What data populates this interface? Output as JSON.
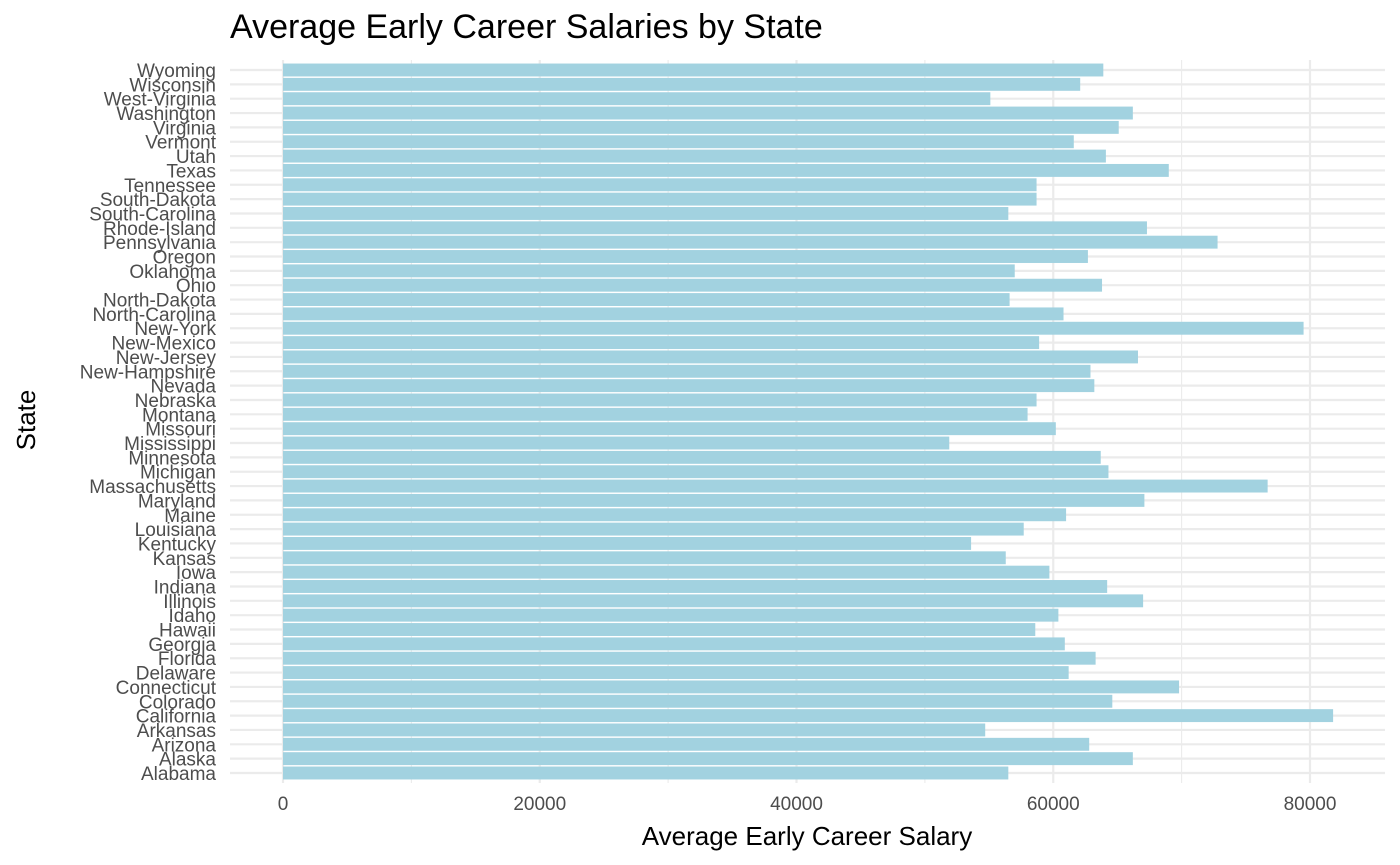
{
  "chart_data": {
    "type": "bar",
    "orientation": "horizontal",
    "title": "Average Early Career Salaries by State",
    "xlabel": "Average Early Career Salary",
    "ylabel": "State",
    "xlim": [
      0,
      85000
    ],
    "xticks": [
      0,
      20000,
      40000,
      60000,
      80000
    ],
    "grid": true,
    "bar_color": "#a2d2e0",
    "categories": [
      "Alabama",
      "Alaska",
      "Arizona",
      "Arkansas",
      "California",
      "Colorado",
      "Connecticut",
      "Delaware",
      "Florida",
      "Georgia",
      "Hawaii",
      "Idaho",
      "Illinois",
      "Indiana",
      "Iowa",
      "Kansas",
      "Kentucky",
      "Louisiana",
      "Maine",
      "Maryland",
      "Massachusetts",
      "Michigan",
      "Minnesota",
      "Mississippi",
      "Missouri",
      "Montana",
      "Nebraska",
      "Nevada",
      "New-Hampshire",
      "New-Jersey",
      "New-Mexico",
      "New-York",
      "North-Carolina",
      "North-Dakota",
      "Ohio",
      "Oklahoma",
      "Oregon",
      "Pennsylvania",
      "Rhode-Island",
      "South-Carolina",
      "South-Dakota",
      "Tennessee",
      "Texas",
      "Utah",
      "Vermont",
      "Virginia",
      "Washington",
      "West-Virginia",
      "Wisconsin",
      "Wyoming"
    ],
    "values": [
      56500,
      66200,
      62800,
      54700,
      81800,
      64600,
      69800,
      61200,
      63300,
      60900,
      58600,
      60400,
      67000,
      64200,
      59700,
      56300,
      53600,
      57700,
      61000,
      67100,
      76700,
      64300,
      63700,
      51900,
      60200,
      58000,
      58700,
      63200,
      62900,
      66600,
      58900,
      79500,
      60800,
      56600,
      63800,
      57000,
      62700,
      72800,
      67300,
      56500,
      58700,
      58700,
      69000,
      64100,
      61600,
      65100,
      66200,
      55100,
      62100,
      63900
    ]
  }
}
